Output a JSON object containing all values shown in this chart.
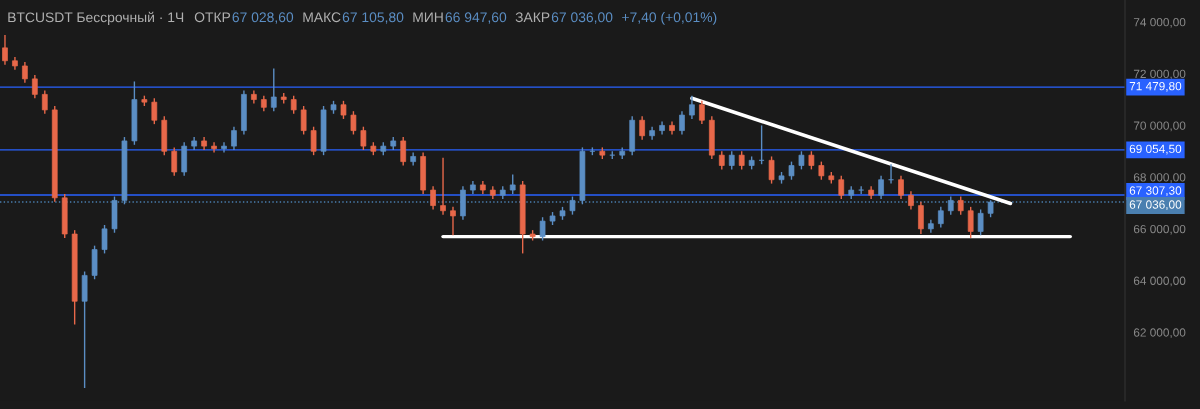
{
  "chart_data": {
    "type": "candlestick",
    "title": "BTCUSDT Бессрочный · 1Ч",
    "annotations": [
      "ОТКР",
      "67 028,60",
      "МАКС",
      "67 105,80",
      "МИН",
      "66 947,60",
      "ЗАКР",
      "67 036,00",
      "+7,40 (+0,01%)"
    ],
    "categories": [
      null,
      null,
      null,
      null,
      null,
      null,
      null,
      null,
      null,
      null,
      null,
      null,
      null,
      null,
      null,
      null,
      null,
      null,
      null,
      null,
      null,
      null,
      null,
      null,
      null,
      null,
      null,
      null,
      null,
      null,
      null,
      null,
      null,
      null,
      null,
      null,
      null,
      null,
      null,
      null,
      null,
      null,
      null,
      null,
      null,
      null,
      null,
      null,
      null,
      null,
      null,
      null,
      null,
      null,
      null,
      null,
      null,
      null,
      null,
      null,
      null,
      null,
      null,
      null,
      null,
      null,
      null,
      null,
      null,
      null,
      null,
      null,
      null,
      null,
      null,
      null,
      null,
      null,
      null,
      null,
      null,
      null,
      null,
      null,
      null,
      null,
      null,
      null,
      null,
      null,
      null,
      null,
      null,
      null,
      null,
      null,
      null,
      null,
      null,
      null,
      null,
      null,
      null,
      null,
      null,
      null,
      null,
      null,
      null,
      null,
      null,
      null,
      null
    ],
    "colors": [
      "#e8684a",
      "#e8684a",
      "#e8684a",
      "#e8684a",
      "#e8684a",
      "#e8684a",
      "#e8684a",
      "#e8684a",
      "#5b8ec4",
      "#5b8ec4",
      "#5b8ec4",
      "#5b8ec4",
      "#5b8ec4",
      "#5b8ec4",
      "#e8684a",
      "#e8684a",
      "#e8684a",
      "#e8684a",
      "#5b8ec4",
      "#5b8ec4",
      "#e8684a",
      "#e8684a",
      "#5b8ec4",
      "#5b8ec4",
      "#5b8ec4",
      "#e8684a",
      "#e8684a",
      "#5b8ec4",
      "#e8684a",
      "#e8684a",
      "#e8684a",
      "#e8684a",
      "#5b8ec4",
      "#5b8ec4",
      "#e8684a",
      "#e8684a",
      "#e8684a",
      "#e8684a",
      "#5b8ec4",
      "#5b8ec4",
      "#e8684a",
      "#5b8ec4",
      "#e8684a",
      "#e8684a",
      "#e8684a",
      "#e8684a",
      "#5b8ec4",
      "#5b8ec4",
      "#e8684a",
      "#e8684a",
      "#5b8ec4",
      "#5b8ec4",
      "#e8684a",
      "#e8684a",
      "#5b8ec4",
      "#5b8ec4",
      "#5b8ec4",
      "#5b8ec4",
      "#5b8ec4",
      "#5b8ec4",
      "#e8684a",
      "#5b8ec4",
      "#5b8ec4",
      "#5b8ec4",
      "#e8684a",
      "#5b8ec4",
      "#5b8ec4",
      "#e8684a",
      "#5b8ec4",
      "#5b8ec4",
      "#e8684a",
      "#e8684a",
      "#e8684a",
      "#5b8ec4",
      "#e8684a",
      "#5b8ec4",
      "#5b8ec4",
      "#e8684a",
      "#5b8ec4",
      "#5b8ec4",
      "#5b8ec4",
      "#e8684a",
      "#e8684a",
      "#e8684a",
      "#e8684a",
      "#5b8ec4",
      "#5b8ec4",
      "#e8684a",
      "#5b8ec4",
      "#5b8ec4",
      "#e8684a",
      "#e8684a",
      "#e8684a",
      "#5b8ec4",
      "#5b8ec4",
      "#5b8ec4",
      "#e8684a",
      "#e8684a",
      "#5b8ec4",
      "#5b8ec4",
      null,
      null,
      null,
      null,
      null,
      null,
      null,
      null,
      null,
      null,
      null,
      null,
      null
    ],
    "ohlc": [
      [
        73000,
        73500,
        72350,
        72500
      ],
      [
        72500,
        72650,
        72150,
        72300
      ],
      [
        72300,
        72450,
        71650,
        71800
      ],
      [
        71800,
        71950,
        71050,
        71200
      ],
      [
        71200,
        71350,
        70450,
        70600
      ],
      [
        70600,
        70750,
        67050,
        67200
      ],
      [
        67200,
        67350,
        65650,
        65800
      ],
      [
        65800,
        65950,
        62300,
        63200
      ],
      [
        63200,
        64350,
        59850,
        64200
      ],
      [
        64200,
        65350,
        64050,
        65200
      ],
      [
        65200,
        66150,
        65050,
        66000
      ],
      [
        66000,
        67250,
        65850,
        67100
      ],
      [
        67100,
        69550,
        66950,
        69400
      ],
      [
        69400,
        71700,
        69250,
        71000
      ],
      [
        71000,
        71150,
        70750,
        70900
      ],
      [
        70900,
        71050,
        70050,
        70200
      ],
      [
        70200,
        70350,
        68850,
        69000
      ],
      [
        69000,
        69150,
        68050,
        68200
      ],
      [
        68200,
        69350,
        68050,
        69200
      ],
      [
        69200,
        69550,
        69050,
        69400
      ],
      [
        69400,
        69550,
        69050,
        69200
      ],
      [
        69200,
        69350,
        68950,
        69100
      ],
      [
        69100,
        69350,
        68950,
        69200
      ],
      [
        69200,
        69950,
        69050,
        69800
      ],
      [
        69800,
        71350,
        69650,
        71200
      ],
      [
        71200,
        71350,
        70850,
        71000
      ],
      [
        71000,
        71150,
        70550,
        70700
      ],
      [
        70700,
        72200,
        70550,
        71100
      ],
      [
        71100,
        71250,
        70850,
        71000
      ],
      [
        71000,
        71150,
        70450,
        70600
      ],
      [
        70600,
        70750,
        69650,
        69800
      ],
      [
        69800,
        69950,
        68850,
        69000
      ],
      [
        69000,
        70750,
        68850,
        70600
      ],
      [
        70600,
        70950,
        70450,
        70800
      ],
      [
        70800,
        70950,
        70250,
        70400
      ],
      [
        70400,
        70550,
        69650,
        69800
      ],
      [
        69800,
        69950,
        69050,
        69200
      ],
      [
        69200,
        69350,
        68850,
        69000
      ],
      [
        69000,
        69350,
        68850,
        69200
      ],
      [
        69200,
        69550,
        69050,
        69400
      ],
      [
        69400,
        69550,
        68450,
        68600
      ],
      [
        68600,
        68950,
        68450,
        68800
      ],
      [
        68800,
        68950,
        67350,
        67500
      ],
      [
        67500,
        67650,
        66750,
        66900
      ],
      [
        66900,
        68750,
        66550,
        66700
      ],
      [
        66700,
        66850,
        65750,
        66500
      ],
      [
        66500,
        67650,
        66350,
        67500
      ],
      [
        67500,
        67850,
        67350,
        67700
      ],
      [
        67700,
        67850,
        67350,
        67500
      ],
      [
        67500,
        67650,
        67150,
        67300
      ],
      [
        67300,
        67650,
        67150,
        67500
      ],
      [
        67500,
        68100,
        67350,
        67700
      ],
      [
        67700,
        67850,
        65050,
        65800
      ],
      [
        65800,
        65950,
        65550,
        65700
      ],
      [
        65700,
        66450,
        65550,
        66300
      ],
      [
        66300,
        66650,
        66150,
        66500
      ],
      [
        66500,
        66850,
        66350,
        66700
      ],
      [
        66700,
        67250,
        66550,
        67100
      ],
      [
        67100,
        69150,
        66950,
        69000
      ],
      [
        69000,
        69150,
        68850,
        69000
      ],
      [
        69000,
        69150,
        68700,
        68850
      ],
      [
        68850,
        69000,
        68700,
        68850
      ],
      [
        68850,
        69150,
        68700,
        69000
      ],
      [
        69000,
        70350,
        68850,
        70200
      ],
      [
        70200,
        70350,
        69450,
        69600
      ],
      [
        69600,
        69950,
        69450,
        69800
      ],
      [
        69800,
        70150,
        69650,
        70000
      ],
      [
        70000,
        70150,
        69650,
        69800
      ],
      [
        69800,
        70550,
        69650,
        70400
      ],
      [
        70400,
        71150,
        70250,
        70800
      ],
      [
        70800,
        70950,
        70050,
        70200
      ],
      [
        70200,
        70350,
        68700,
        68850
      ],
      [
        68850,
        69000,
        68300,
        68450
      ],
      [
        68450,
        69000,
        68300,
        68850
      ],
      [
        68850,
        69000,
        68300,
        68450
      ],
      [
        68450,
        68800,
        68300,
        68650
      ],
      [
        68650,
        70000,
        68500,
        68650
      ],
      [
        68650,
        68800,
        67750,
        67900
      ],
      [
        67900,
        68200,
        67750,
        68050
      ],
      [
        68050,
        68600,
        67900,
        68450
      ],
      [
        68450,
        69000,
        68300,
        68850
      ],
      [
        68850,
        69000,
        68300,
        68450
      ],
      [
        68450,
        68600,
        67900,
        68050
      ],
      [
        68050,
        68200,
        67750,
        67900
      ],
      [
        67900,
        68050,
        67150,
        67300
      ],
      [
        67300,
        67650,
        67150,
        67500
      ],
      [
        67500,
        67650,
        67350,
        67500
      ],
      [
        67500,
        67650,
        67150,
        67300
      ],
      [
        67300,
        68050,
        67150,
        67900
      ],
      [
        67900,
        68500,
        67750,
        67900
      ],
      [
        67900,
        68050,
        67150,
        67300
      ],
      [
        67300,
        67450,
        66750,
        66900
      ],
      [
        66900,
        67050,
        65800,
        66000
      ],
      [
        66000,
        66350,
        65850,
        66200
      ],
      [
        66200,
        66850,
        66050,
        66700
      ],
      [
        66700,
        67250,
        66550,
        67100
      ],
      [
        67100,
        67250,
        66550,
        66700
      ],
      [
        66700,
        66850,
        65650,
        65900
      ],
      [
        65900,
        66750,
        65750,
        66600
      ],
      [
        66600,
        67106,
        66450,
        67036
      ],
      null,
      null,
      null,
      null,
      null,
      null,
      null,
      null,
      null,
      null,
      null,
      null,
      null
    ],
    "series": [
      {
        "type": "line",
        "color": "#ffffff",
        "values": [
          null,
          null,
          null,
          null,
          null,
          null,
          null,
          null,
          null,
          null,
          null,
          null,
          null,
          null,
          null,
          null,
          null,
          null,
          null,
          null,
          null,
          null,
          null,
          null,
          null,
          null,
          null,
          null,
          null,
          null,
          null,
          null,
          null,
          null,
          null,
          null,
          null,
          null,
          null,
          null,
          null,
          null,
          null,
          null,
          65700,
          null,
          null,
          null,
          null,
          null,
          null,
          null,
          null,
          null,
          null,
          null,
          null,
          null,
          null,
          null,
          null,
          null,
          null,
          null,
          null,
          null,
          null,
          null,
          null,
          null,
          null,
          null,
          null,
          null,
          null,
          null,
          null,
          null,
          null,
          null,
          null,
          null,
          null,
          null,
          null,
          null,
          null,
          null,
          null,
          null,
          null,
          null,
          null,
          null,
          null,
          null,
          null,
          null,
          null,
          null,
          null,
          null,
          null,
          null,
          null,
          null,
          null,
          65700,
          null,
          null,
          null,
          null,
          null
        ]
      },
      {
        "type": "line",
        "color": "#ffffff",
        "values": [
          null,
          null,
          null,
          null,
          null,
          null,
          null,
          null,
          null,
          null,
          null,
          null,
          null,
          null,
          null,
          null,
          null,
          null,
          null,
          null,
          null,
          null,
          null,
          null,
          null,
          null,
          null,
          null,
          null,
          null,
          null,
          null,
          null,
          null,
          null,
          null,
          null,
          null,
          null,
          null,
          null,
          null,
          null,
          null,
          null,
          null,
          null,
          null,
          null,
          null,
          null,
          null,
          null,
          null,
          null,
          null,
          null,
          null,
          null,
          null,
          null,
          null,
          null,
          null,
          null,
          null,
          null,
          null,
          null,
          71050,
          null,
          null,
          null,
          null,
          null,
          null,
          null,
          null,
          null,
          null,
          null,
          null,
          null,
          null,
          null,
          null,
          null,
          null,
          null,
          null,
          null,
          null,
          null,
          null,
          null,
          null,
          null,
          null,
          null,
          null,
          null,
          66980,
          null,
          null,
          null,
          null,
          null,
          null,
          null,
          null,
          null,
          null,
          null
        ]
      }
    ],
    "ref_lines": [
      {
        "axis": "y",
        "value": 71479.8,
        "label": "71 479,80",
        "color": "#2962ff",
        "line_style": "solid"
      },
      {
        "axis": "y",
        "value": 69054.5,
        "label": "69 054,50",
        "color": "#2962ff",
        "line_style": "solid"
      },
      {
        "axis": "y",
        "value": 67307.3,
        "label": "67 307,30",
        "color": "#2962ff",
        "line_style": "solid"
      },
      {
        "axis": "y",
        "value": 67036,
        "label": "67 036,00",
        "color": "#4a7fb0",
        "line_style": "dotted"
      }
    ],
    "ylim": [
      59350,
      74850
    ],
    "yticks": [
      {
        "value": 62000,
        "label": "62 000,00"
      },
      {
        "value": 64000,
        "label": "64 000,00"
      },
      {
        "value": 66000,
        "label": "66 000,00"
      },
      {
        "value": 68000,
        "label": "68 000,00"
      },
      {
        "value": 70000,
        "label": "70 000,00"
      },
      {
        "value": 72000,
        "label": "72 000,00"
      },
      {
        "value": 74000,
        "label": "74 000,00"
      }
    ],
    "tick_labels": "y",
    "grid": false,
    "legend": false
  }
}
